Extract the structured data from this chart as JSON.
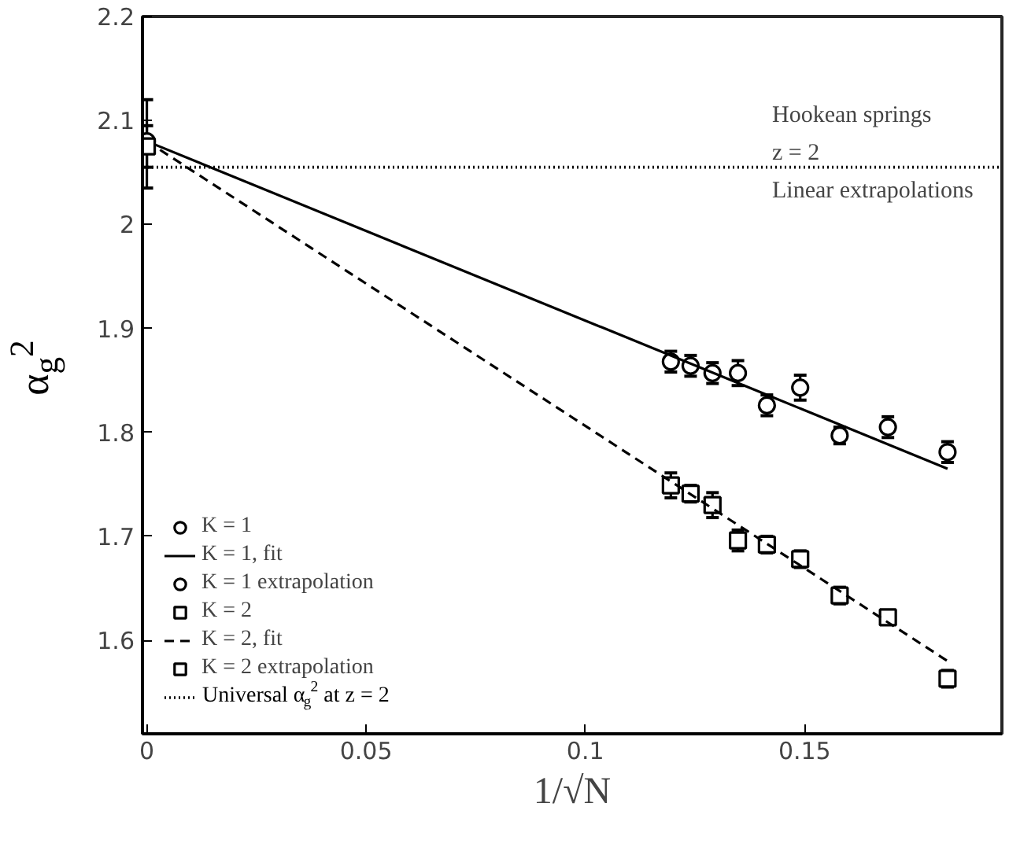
{
  "chart_data": {
    "type": "scatter",
    "xlabel": "1/√N",
    "ylabel": "α$_{g}$$^{2}$",
    "xlim": [
      -0.001,
      0.195
    ],
    "ylim": [
      1.51,
      2.2
    ],
    "xticks": [
      0,
      0.05,
      0.1,
      0.15
    ],
    "yticks": [
      1.6,
      1.7,
      1.8,
      1.9,
      2,
      2.1,
      2.2
    ],
    "grid": false,
    "legend": "bottom left",
    "annotations": [
      "Hookean springs",
      "z = 2",
      "Linear extrapolations"
    ],
    "series": [
      {
        "name": "K = 1",
        "marker": "circle",
        "color": "#000000",
        "x": [
          0.1195,
          0.124,
          0.129,
          0.1348,
          0.1414,
          0.149,
          0.158,
          0.169,
          0.1826
        ],
        "values": [
          1.868,
          1.864,
          1.857,
          1.857,
          1.826,
          1.843,
          1.797,
          1.805,
          1.781
        ],
        "errors": [
          0.01,
          0.01,
          0.01,
          0.012,
          0.01,
          0.012,
          0.008,
          0.01,
          0.01
        ]
      },
      {
        "name": "K = 1, fit",
        "type": "line",
        "line_style": "solid",
        "color": "#000000",
        "x": [
          0,
          0.1826
        ],
        "values": [
          2.08,
          1.765
        ]
      },
      {
        "name": "K = 1 extrapolation",
        "marker": "circle",
        "color": "#000000",
        "x": [
          0
        ],
        "values": [
          2.08
        ],
        "errors": [
          [
            2.035,
            2.12
          ]
        ]
      },
      {
        "name": "K = 2",
        "marker": "square",
        "color": "#000000",
        "x": [
          0.1195,
          0.124,
          0.129,
          0.1348,
          0.1414,
          0.149,
          0.158,
          0.169,
          0.1826
        ],
        "values": [
          1.749,
          1.741,
          1.73,
          1.696,
          1.692,
          1.678,
          1.643,
          1.622,
          1.563
        ],
        "errors": [
          0.012,
          0.008,
          0.012,
          0.01,
          0.008,
          0.008,
          0.008,
          0.006,
          0.008
        ]
      },
      {
        "name": "K = 2, fit",
        "type": "line",
        "line_style": "dashed",
        "color": "#000000",
        "x": [
          0,
          0.1826
        ],
        "values": [
          2.08,
          1.58
        ]
      },
      {
        "name": "K = 2 extrapolation",
        "marker": "square",
        "color": "#000000",
        "x": [
          0
        ],
        "values": [
          2.075
        ],
        "errors": [
          0.02
        ]
      }
    ],
    "ref_lines": [
      {
        "axis": "y",
        "value": 2.055,
        "label": "Universal α$_{g}$$^{2}$ at z = 2",
        "line_style": "dotted",
        "color": "#000000"
      }
    ]
  }
}
